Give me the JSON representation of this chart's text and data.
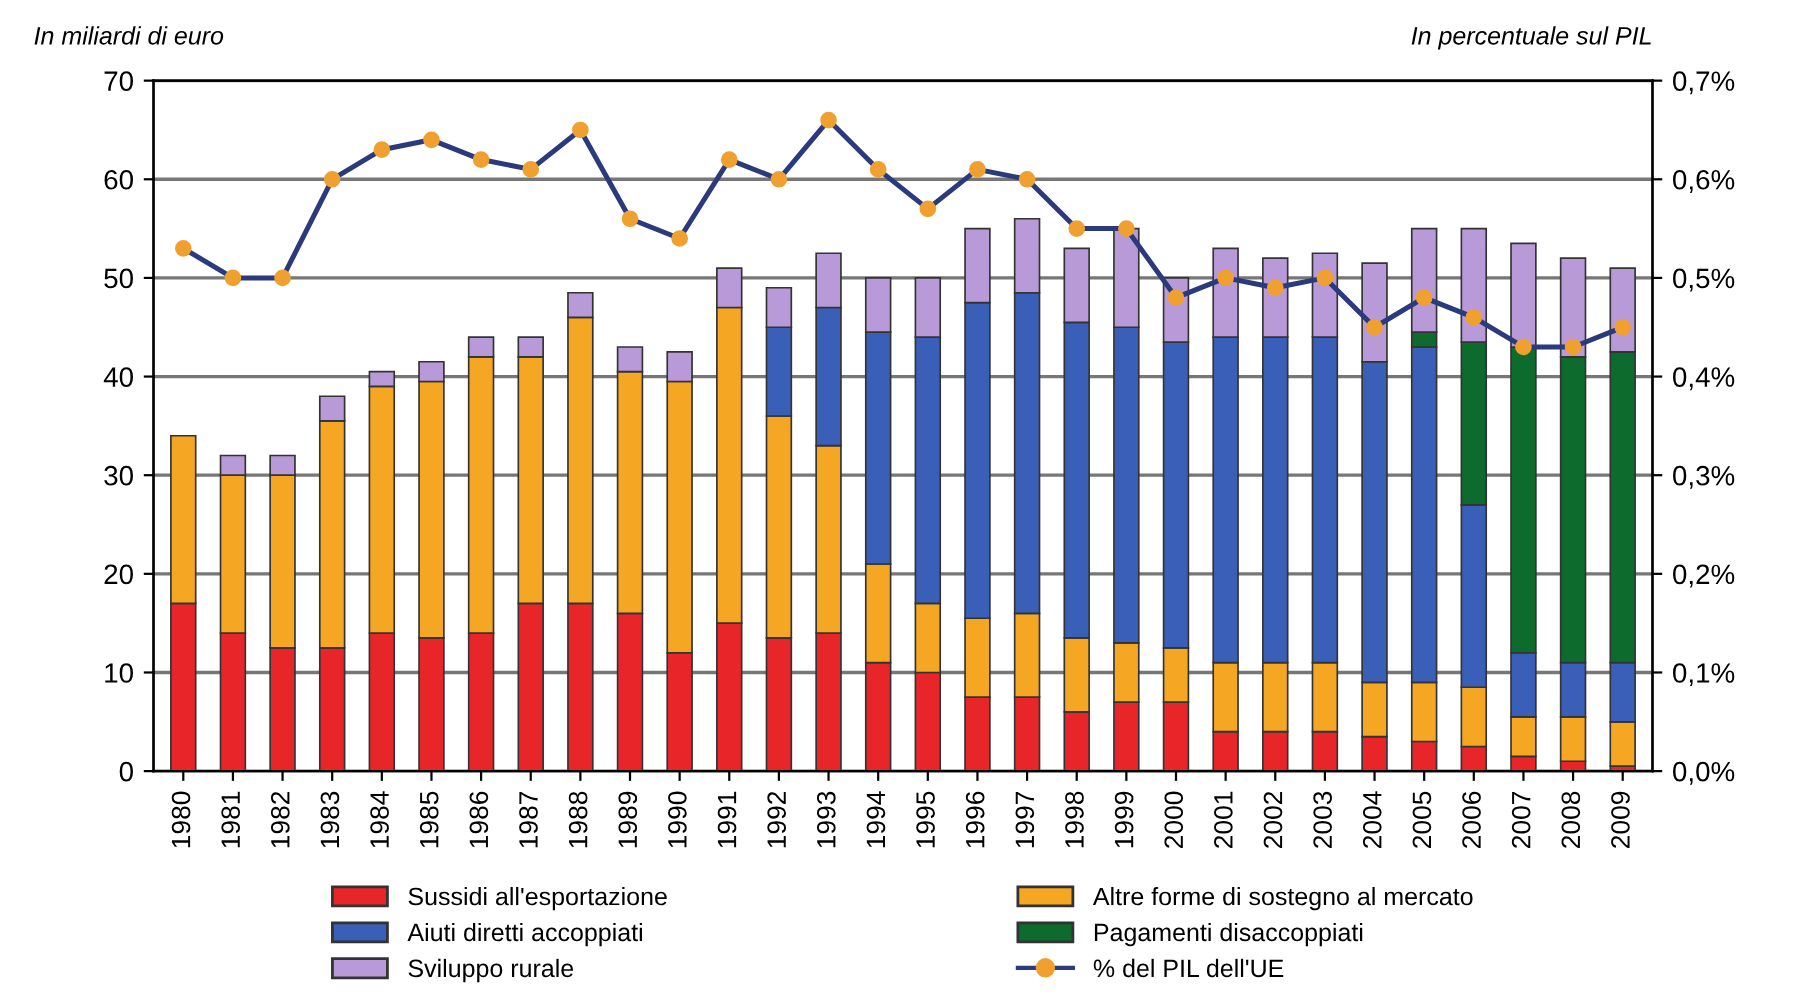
{
  "chart_data": {
    "type": "bar",
    "stacked": true,
    "ylabel": "In miliardi di euro",
    "y2label": "In percentuale sul PIL",
    "categories": [
      "1980",
      "1981",
      "1982",
      "1983",
      "1984",
      "1985",
      "1986",
      "1987",
      "1988",
      "1989",
      "1990",
      "1991",
      "1992",
      "1993",
      "1994",
      "1995",
      "1996",
      "1997",
      "1998",
      "1999",
      "2000",
      "2001",
      "2002",
      "2003",
      "2004",
      "2005",
      "2006",
      "2007",
      "2008",
      "2009"
    ],
    "series": [
      {
        "name": "Sussidi all'esportazione",
        "color": "#e8262a",
        "values": [
          17,
          14,
          12.5,
          12.5,
          14,
          13.5,
          14,
          17,
          17,
          16,
          12,
          15,
          13.5,
          14,
          11,
          10,
          7.5,
          7.5,
          6,
          7,
          7,
          4,
          4,
          4,
          3.5,
          3,
          2.5,
          1.5,
          1,
          0.5
        ]
      },
      {
        "name": "Altre forme di sostegno al mercato",
        "color": "#f5a623",
        "values": [
          17,
          16,
          17.5,
          23,
          25,
          26,
          28,
          25,
          29,
          24.5,
          27.5,
          32,
          22.5,
          19,
          10,
          7,
          8,
          8.5,
          7.5,
          6,
          5.5,
          7,
          7,
          7,
          5.5,
          6,
          6,
          4,
          4.5,
          4.5
        ]
      },
      {
        "name": "Aiuti diretti accoppiati",
        "color": "#3a5fb8",
        "values": [
          null,
          null,
          null,
          null,
          null,
          null,
          null,
          null,
          null,
          null,
          null,
          null,
          9,
          14,
          23.5,
          27,
          32,
          32.5,
          32,
          32,
          31,
          33,
          33,
          33,
          32.5,
          34,
          18.5,
          6.5,
          5.5,
          6
        ]
      },
      {
        "name": "Pagamenti disaccoppiati",
        "color": "#0e6b2e",
        "values": [
          null,
          null,
          null,
          null,
          null,
          null,
          null,
          null,
          null,
          null,
          null,
          null,
          null,
          null,
          null,
          null,
          null,
          null,
          null,
          null,
          null,
          null,
          null,
          null,
          null,
          1.5,
          16.5,
          31,
          31,
          31.5
        ]
      },
      {
        "name": "Sviluppo rurale",
        "color": "#b99ad8",
        "values": [
          null,
          2,
          2,
          2.5,
          1.5,
          2,
          2,
          2,
          2.5,
          2.5,
          3,
          4,
          4,
          5.5,
          5.5,
          6,
          7.5,
          7.5,
          7.5,
          10,
          6.5,
          9,
          8,
          8.5,
          10,
          10.5,
          11.5,
          10.5,
          10,
          8.5
        ]
      },
      {
        "name": "% del PIL dell'UE",
        "type": "line",
        "axis": "y2",
        "color": "#2b3a7c",
        "marker": "circle",
        "values": [
          0.53,
          0.5,
          0.5,
          0.6,
          0.63,
          0.64,
          0.62,
          0.61,
          0.65,
          0.56,
          0.54,
          0.62,
          0.6,
          0.66,
          0.61,
          0.57,
          0.61,
          0.6,
          0.55,
          0.55,
          0.48,
          0.5,
          0.49,
          0.5,
          0.45,
          0.48,
          0.46,
          0.43,
          0.43,
          0.45
        ]
      }
    ],
    "ylim": [
      0,
      70
    ],
    "yticks": [
      0,
      10,
      20,
      30,
      40,
      50,
      60,
      70
    ],
    "y2lim": [
      0,
      0.7
    ],
    "y2ticks": [
      {
        "value": 0,
        "label": "0,0%"
      },
      {
        "value": 0.1,
        "label": "0,1%"
      },
      {
        "value": 0.2,
        "label": "0,2%"
      },
      {
        "value": 0.3,
        "label": "0,3%"
      },
      {
        "value": 0.4,
        "label": "0,4%"
      },
      {
        "value": 0.5,
        "label": "0,5%"
      },
      {
        "value": 0.6,
        "label": "0,6%"
      },
      {
        "value": 0.7,
        "label": "0,7%"
      }
    ],
    "grid": "y",
    "legend": "bottom"
  }
}
